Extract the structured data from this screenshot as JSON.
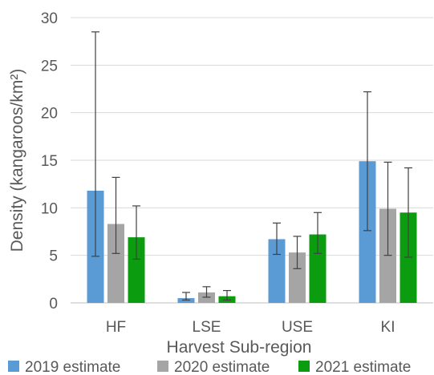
{
  "chart_data": {
    "type": "bar",
    "title": "",
    "xlabel": "Harvest Sub-region",
    "ylabel": "Density (kangaroos/km²)",
    "ylim": [
      0,
      30
    ],
    "yticks": [
      0,
      5,
      10,
      15,
      20,
      25,
      30
    ],
    "grid": true,
    "legend_position": "bottom",
    "categories": [
      "HF",
      "LSE",
      "USE",
      "KI"
    ],
    "series": [
      {
        "name": "2019 estimate",
        "color": "#5b9bd5",
        "values": [
          11.8,
          0.5,
          6.7,
          14.9
        ],
        "err_low": [
          4.9,
          0.3,
          5.1,
          7.6
        ],
        "err_high": [
          28.5,
          1.1,
          8.4,
          22.2
        ]
      },
      {
        "name": "2020 estimate",
        "color": "#a5a5a5",
        "values": [
          8.3,
          1.1,
          5.3,
          9.9
        ],
        "err_low": [
          5.2,
          0.6,
          3.6,
          5.0
        ],
        "err_high": [
          13.2,
          1.7,
          7.0,
          14.8
        ]
      },
      {
        "name": "2021 estimate",
        "color": "#0c9c10",
        "values": [
          6.9,
          0.7,
          7.2,
          9.5
        ],
        "err_low": [
          4.6,
          0.3,
          5.2,
          4.8
        ],
        "err_high": [
          10.2,
          1.3,
          9.5,
          14.2
        ]
      }
    ]
  }
}
